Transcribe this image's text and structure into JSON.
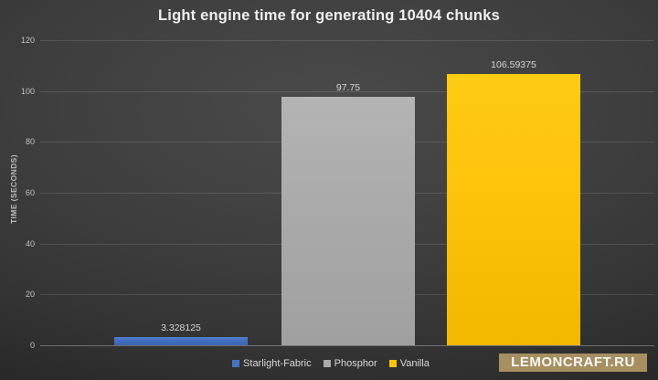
{
  "title": "Light engine time for generating 10404 chunks",
  "watermark_text": "LEMONCRAFT.RU",
  "colors": {
    "starlight_fabric": "#4472C4",
    "phosphor": "#ABABAB",
    "vanilla": "#FDC40B",
    "watermark_bg": "#A68F60",
    "background_center": "#4A4A4A",
    "background_edge": "#181818",
    "text_light": "#EFEFEF"
  },
  "chart_data": {
    "type": "bar",
    "title": "Light engine time for generating 10404 chunks",
    "categories": [
      "Starlight-Fabric",
      "Phosphor",
      "Vanilla"
    ],
    "values": [
      3.328125,
      97.75,
      106.59375
    ],
    "value_labels": [
      "3.328125",
      "97.75",
      "106.59375"
    ],
    "series_colors": [
      "#4472C4",
      "#ABABAB",
      "#FDC40B"
    ],
    "bar_css_classes": [
      "bar-starlight",
      "bar-phosphor",
      "bar-vanilla"
    ],
    "xlabel": "",
    "ylabel": "TIME (SECONDS)",
    "ylim": [
      0,
      120
    ],
    "yticks": [
      0,
      20,
      40,
      60,
      80,
      100,
      120
    ],
    "grid": true,
    "legend_position": "bottom"
  }
}
